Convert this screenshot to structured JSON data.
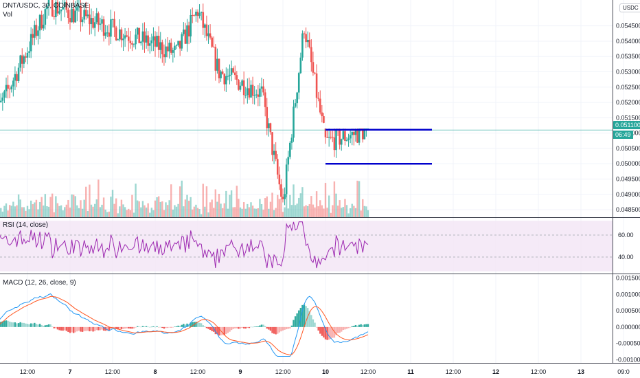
{
  "header": {
    "symbol_line": "DNT/USDC, 30, COINBASE",
    "volume_label": "Vol",
    "quote_currency": "USDC"
  },
  "price_tag": {
    "value": "0.051100",
    "countdown": "06:49"
  },
  "rsi_panel": {
    "label": "RSI (14, close)",
    "levels": [
      "60.00",
      "40.00"
    ]
  },
  "macd_panel": {
    "label": "MACD (12, 26, close, 9)"
  },
  "colors": {
    "up": "#26a69a",
    "down": "#ef5350",
    "rsi_line": "#9c27b0",
    "rsi_band": "#f3e5f5",
    "macd_line": "#2196f3",
    "signal_line": "#ff5722",
    "channel": "#0000cc",
    "price_line": "#26a69a"
  },
  "chart_data": [
    {
      "type": "candlestick",
      "title": "DNT/USDC, 30, COINBASE",
      "ylim": [
        0.0483,
        0.0553
      ],
      "y_ticks": [
        "0.054500",
        "0.054000",
        "0.053500",
        "0.053000",
        "0.052500",
        "0.052000",
        "0.051500",
        "0.051000",
        "0.050500",
        "0.050000",
        "0.049500",
        "0.049000",
        "0.048500"
      ],
      "x_ticks": [
        "12:00",
        "7",
        "12:00",
        "8",
        "12:00",
        "9",
        "12:00",
        "10",
        "12:00",
        "11",
        "12:00",
        "12",
        "12:00",
        "13",
        "09:0"
      ],
      "current_price": 0.0511,
      "channel_lines": [
        {
          "y": 0.05111,
          "x_from": "10 00:00",
          "x_to": "11 06:00"
        },
        {
          "y": 0.05,
          "x_from": "10 00:00",
          "x_to": "11 06:00"
        }
      ],
      "key_levels": [
        {
          "at": "6 18:00",
          "value": 0.0552
        },
        {
          "at": "8 06:00",
          "value": 0.0536
        },
        {
          "at": "8 12:00",
          "value": 0.055
        },
        {
          "at": "8 18:00",
          "value": 0.053
        },
        {
          "at": "9 06:00",
          "value": 0.0523
        },
        {
          "at": "9 12:00",
          "value": 0.0487
        },
        {
          "at": "9 18:00",
          "value": 0.0545
        },
        {
          "at": "10 00:00",
          "value": 0.0507
        },
        {
          "at": "10 12:00",
          "value": 0.0511
        }
      ]
    },
    {
      "type": "line",
      "title": "RSI (14, close)",
      "ylim": [
        25,
        75
      ],
      "levels": [
        60,
        40
      ],
      "approx_range": [
        30,
        72
      ]
    },
    {
      "type": "bar",
      "title": "MACD (12, 26, close, 9)",
      "ylim": [
        -0.0011,
        0.0016
      ],
      "y_ticks": [
        "0.001500",
        "0.001000",
        "0.000500",
        "0.000000",
        "-0.000500",
        "-0.001000"
      ],
      "approx_range": [
        -0.0009,
        0.0011
      ]
    }
  ]
}
